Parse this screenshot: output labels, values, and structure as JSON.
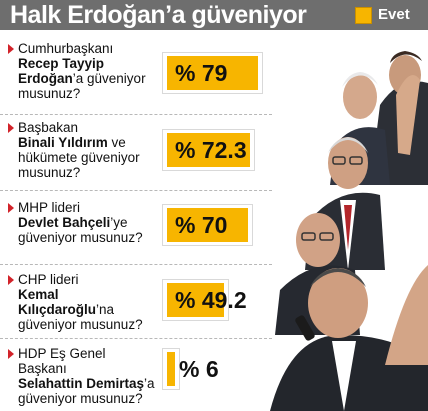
{
  "title": "Halk Erdoğan’a güveniyor",
  "legend": {
    "label": "Evet",
    "color": "#f7b500"
  },
  "questions": [
    {
      "line1": "Cumhurbaşkanı",
      "name": "Recep Tayyip Erdoğan",
      "rest": "’a güveniyor musunuz?"
    },
    {
      "line1": "Başbakan",
      "name": "Binali Yıldırım",
      "rest": " ve hükümete güveniyor musunuz?"
    },
    {
      "line1": "MHP lideri",
      "name": "Devlet Bahçeli",
      "rest": "’ye güveniyor musunuz?"
    },
    {
      "line1": "CHP lideri",
      "name": "Kemal Kılıçdaroğlu",
      "rest": "’na güveniyor musunuz?"
    },
    {
      "line1": "HDP Eş Genel Başkanı",
      "name": "Selahattin Demirtaş",
      "rest": "’a güveniyor musunuz?"
    }
  ],
  "chart_data": {
    "type": "bar",
    "orientation": "horizontal",
    "title": "Halk Erdoğan’a güveniyor",
    "legend": [
      "Evet"
    ],
    "categories": [
      "Cumhurbaşkanı Recep Tayyip Erdoğan’a güveniyor musunuz?",
      "Başbakan Binali Yıldırım ve hükümete güveniyor musunuz?",
      "MHP lideri Devlet Bahçeli’ye güveniyor musunuz?",
      "CHP lideri Kemal Kılıçdaroğlu’na güveniyor musunuz?",
      "HDP Eş Genel Başkanı Selahattin Demirtaş’a güveniyor musunuz?"
    ],
    "series": [
      {
        "name": "Evet",
        "values": [
          79,
          72.3,
          70,
          49.2,
          6
        ]
      }
    ],
    "value_labels": [
      "% 79",
      "% 72.3",
      "% 70",
      "% 49.2",
      "% 6"
    ],
    "xlim": [
      0,
      100
    ]
  }
}
